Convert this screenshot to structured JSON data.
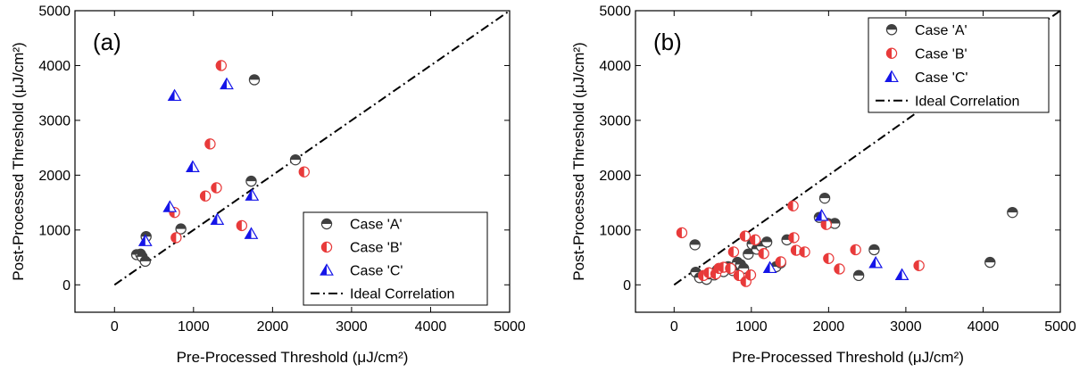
{
  "chart_data": [
    {
      "type": "scatter",
      "panel_label": "(a)",
      "xlabel": "Pre-Processed Threshold (μJ/cm²)",
      "ylabel": "Post-Processed Threshold (μJ/cm²)",
      "xlim": [
        -500,
        5000
      ],
      "ylim": [
        -500,
        5000
      ],
      "xticks": [
        0,
        1000,
        2000,
        3000,
        4000,
        5000
      ],
      "yticks": [
        0,
        1000,
        2000,
        3000,
        4000,
        5000
      ],
      "grid": false,
      "legend_position": "bottom-right",
      "series": [
        {
          "name": "Case 'A'",
          "marker": "circle-top-half",
          "color": "#404040",
          "points": [
            [
              280,
              550
            ],
            [
              330,
              560
            ],
            [
              350,
              510
            ],
            [
              390,
              430
            ],
            [
              400,
              880
            ],
            [
              840,
              1020
            ],
            [
              1770,
              3740
            ],
            [
              1730,
              1890
            ],
            [
              2290,
              2280
            ]
          ]
        },
        {
          "name": "Case 'B'",
          "marker": "circle-left-half",
          "color": "#e83a3a",
          "points": [
            [
              780,
              860
            ],
            [
              760,
              1320
            ],
            [
              1150,
              1620
            ],
            [
              1210,
              2570
            ],
            [
              1290,
              1770
            ],
            [
              1350,
              4000
            ],
            [
              1610,
              1080
            ],
            [
              2400,
              2060
            ]
          ]
        },
        {
          "name": "Case 'C'",
          "marker": "triangle-left-half",
          "color": "#1515e8",
          "points": [
            [
              390,
              800
            ],
            [
              700,
              1420
            ],
            [
              760,
              3450
            ],
            [
              990,
              2150
            ],
            [
              1300,
              1190
            ],
            [
              1420,
              3660
            ],
            [
              1740,
              1630
            ],
            [
              1730,
              930
            ]
          ]
        },
        {
          "name": "Ideal Correlation",
          "type": "line",
          "dash": "dash-dot",
          "color": "#000000",
          "points": [
            [
              0,
              0
            ],
            [
              5000,
              5000
            ]
          ]
        }
      ]
    },
    {
      "type": "scatter",
      "panel_label": "(b)",
      "xlabel": "Pre-Processed Threshold (μJ/cm²)",
      "ylabel": "Post-Processed Threshold (μJ/cm²)",
      "xlim": [
        -500,
        5000
      ],
      "ylim": [
        -500,
        5000
      ],
      "xticks": [
        0,
        1000,
        2000,
        3000,
        4000,
        5000
      ],
      "yticks": [
        0,
        1000,
        2000,
        3000,
        4000,
        5000
      ],
      "grid": false,
      "legend_position": "top-right",
      "series": [
        {
          "name": "Case 'A'",
          "marker": "circle-top-half",
          "color": "#404040",
          "points": [
            [
              270,
              730
            ],
            [
              280,
              230
            ],
            [
              330,
              130
            ],
            [
              420,
              100
            ],
            [
              520,
              180
            ],
            [
              560,
              270
            ],
            [
              640,
              240
            ],
            [
              700,
              330
            ],
            [
              760,
              260
            ],
            [
              820,
              410
            ],
            [
              860,
              370
            ],
            [
              900,
              300
            ],
            [
              960,
              560
            ],
            [
              1010,
              740
            ],
            [
              1070,
              650
            ],
            [
              1130,
              700
            ],
            [
              1200,
              780
            ],
            [
              1320,
              330
            ],
            [
              1380,
              400
            ],
            [
              1460,
              820
            ],
            [
              1880,
              1230
            ],
            [
              1950,
              1580
            ],
            [
              1990,
              1120
            ],
            [
              2080,
              1120
            ],
            [
              2390,
              170
            ],
            [
              2590,
              640
            ],
            [
              4090,
              410
            ],
            [
              4380,
              1320
            ]
          ]
        },
        {
          "name": "Case 'B'",
          "marker": "circle-left-half",
          "color": "#e83a3a",
          "points": [
            [
              100,
              950
            ],
            [
              380,
              170
            ],
            [
              450,
              220
            ],
            [
              540,
              200
            ],
            [
              580,
              300
            ],
            [
              640,
              320
            ],
            [
              730,
              300
            ],
            [
              770,
              600
            ],
            [
              840,
              170
            ],
            [
              920,
              890
            ],
            [
              930,
              60
            ],
            [
              990,
              180
            ],
            [
              1050,
              820
            ],
            [
              1160,
              570
            ],
            [
              1380,
              420
            ],
            [
              1540,
              1440
            ],
            [
              1550,
              860
            ],
            [
              1580,
              630
            ],
            [
              1690,
              600
            ],
            [
              1970,
              1100
            ],
            [
              2000,
              480
            ],
            [
              2140,
              290
            ],
            [
              2350,
              640
            ],
            [
              3170,
              350
            ]
          ]
        },
        {
          "name": "Case 'C'",
          "marker": "triangle-left-half",
          "color": "#1515e8",
          "points": [
            [
              1240,
              310
            ],
            [
              1910,
              1260
            ],
            [
              2610,
              400
            ],
            [
              2950,
              180
            ]
          ]
        },
        {
          "name": "Ideal Correlation",
          "type": "line",
          "dash": "dash-dot",
          "color": "#000000",
          "points": [
            [
              0,
              0
            ],
            [
              5000,
              5000
            ]
          ]
        }
      ]
    }
  ]
}
